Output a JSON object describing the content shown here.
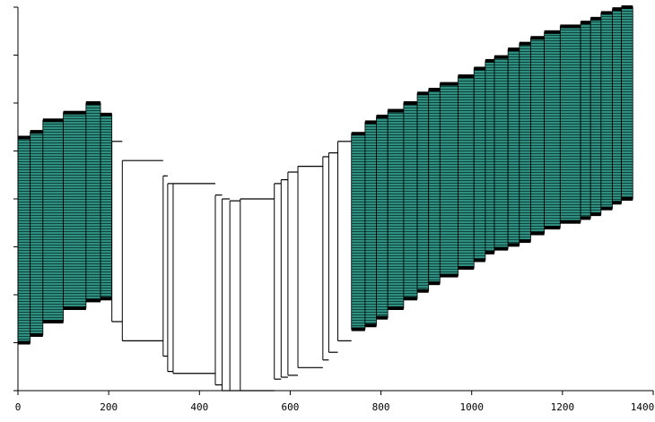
{
  "chart_data": {
    "type": "bar",
    "subtype": "floating-range-columns",
    "title": "",
    "xlabel": "",
    "ylabel": "",
    "x_ticks": [
      "0",
      "200",
      "400",
      "600",
      "800",
      "1000",
      "1200",
      "1400"
    ],
    "y_ticks_legible": false,
    "xlim": [
      0,
      1400
    ],
    "ylim": [
      0,
      100
    ],
    "grid": false,
    "legend": "none",
    "colors": {
      "filled": "#2f8f80",
      "hatch_line": "#0b3b35",
      "cap": "#000000",
      "outline": "#000000",
      "empty": "#ffffff"
    },
    "bars": [
      {
        "x0": 0,
        "x1": 27,
        "low": 12.5,
        "high": 66,
        "filled": true
      },
      {
        "x0": 27,
        "x1": 55,
        "low": 14.5,
        "high": 67.5,
        "filled": true
      },
      {
        "x0": 55,
        "x1": 100,
        "low": 18,
        "high": 70.5,
        "filled": true
      },
      {
        "x0": 100,
        "x1": 150,
        "low": 21.5,
        "high": 72.5,
        "filled": true
      },
      {
        "x0": 150,
        "x1": 182,
        "low": 23.5,
        "high": 75,
        "filled": true
      },
      {
        "x0": 182,
        "x1": 207,
        "low": 24,
        "high": 72,
        "filled": true
      },
      {
        "x0": 207,
        "x1": 230,
        "low": 18,
        "high": 65,
        "filled": false
      },
      {
        "x0": 230,
        "x1": 320,
        "low": 13,
        "high": 60,
        "filled": false
      },
      {
        "x0": 320,
        "x1": 330,
        "low": 9,
        "high": 56,
        "filled": false
      },
      {
        "x0": 330,
        "x1": 342,
        "low": 5,
        "high": 54,
        "filled": false
      },
      {
        "x0": 342,
        "x1": 435,
        "low": 4.5,
        "high": 54,
        "filled": false
      },
      {
        "x0": 435,
        "x1": 450,
        "low": 1.5,
        "high": 51,
        "filled": false
      },
      {
        "x0": 450,
        "x1": 467,
        "low": 0,
        "high": 50,
        "filled": false
      },
      {
        "x0": 467,
        "x1": 490,
        "low": 0,
        "high": 49.5,
        "filled": false
      },
      {
        "x0": 490,
        "x1": 565,
        "low": 0,
        "high": 50,
        "filled": false
      },
      {
        "x0": 565,
        "x1": 580,
        "low": 3,
        "high": 54,
        "filled": false
      },
      {
        "x0": 580,
        "x1": 595,
        "low": 3.5,
        "high": 55,
        "filled": false
      },
      {
        "x0": 595,
        "x1": 617,
        "low": 4,
        "high": 57,
        "filled": false
      },
      {
        "x0": 617,
        "x1": 672,
        "low": 6,
        "high": 58.5,
        "filled": false
      },
      {
        "x0": 672,
        "x1": 685,
        "low": 8,
        "high": 61,
        "filled": false
      },
      {
        "x0": 685,
        "x1": 705,
        "low": 10,
        "high": 62,
        "filled": false
      },
      {
        "x0": 705,
        "x1": 735,
        "low": 13,
        "high": 65,
        "filled": false
      },
      {
        "x0": 735,
        "x1": 765,
        "low": 16,
        "high": 67,
        "filled": true
      },
      {
        "x0": 765,
        "x1": 790,
        "low": 17,
        "high": 70,
        "filled": true
      },
      {
        "x0": 790,
        "x1": 815,
        "low": 19,
        "high": 71.5,
        "filled": true
      },
      {
        "x0": 815,
        "x1": 850,
        "low": 21.5,
        "high": 73,
        "filled": true
      },
      {
        "x0": 850,
        "x1": 880,
        "low": 24,
        "high": 75,
        "filled": true
      },
      {
        "x0": 880,
        "x1": 905,
        "low": 26,
        "high": 77.5,
        "filled": true
      },
      {
        "x0": 905,
        "x1": 930,
        "low": 28,
        "high": 78.5,
        "filled": true
      },
      {
        "x0": 930,
        "x1": 970,
        "low": 30,
        "high": 80,
        "filled": true
      },
      {
        "x0": 970,
        "x1": 1005,
        "low": 32,
        "high": 82,
        "filled": true
      },
      {
        "x0": 1005,
        "x1": 1030,
        "low": 34,
        "high": 84,
        "filled": true
      },
      {
        "x0": 1030,
        "x1": 1050,
        "low": 36,
        "high": 86,
        "filled": true
      },
      {
        "x0": 1050,
        "x1": 1080,
        "low": 37,
        "high": 87,
        "filled": true
      },
      {
        "x0": 1080,
        "x1": 1105,
        "low": 38,
        "high": 89,
        "filled": true
      },
      {
        "x0": 1105,
        "x1": 1130,
        "low": 39,
        "high": 90.5,
        "filled": true
      },
      {
        "x0": 1130,
        "x1": 1160,
        "low": 41,
        "high": 92,
        "filled": true
      },
      {
        "x0": 1160,
        "x1": 1195,
        "low": 42.5,
        "high": 93.5,
        "filled": true
      },
      {
        "x0": 1195,
        "x1": 1240,
        "low": 44,
        "high": 95,
        "filled": true
      },
      {
        "x0": 1240,
        "x1": 1262,
        "low": 45,
        "high": 96,
        "filled": true
      },
      {
        "x0": 1262,
        "x1": 1285,
        "low": 46,
        "high": 97,
        "filled": true
      },
      {
        "x0": 1285,
        "x1": 1310,
        "low": 47.5,
        "high": 98.5,
        "filled": true
      },
      {
        "x0": 1310,
        "x1": 1330,
        "low": 49,
        "high": 99.5,
        "filled": true
      },
      {
        "x0": 1330,
        "x1": 1355,
        "low": 50,
        "high": 100,
        "filled": true
      }
    ]
  }
}
